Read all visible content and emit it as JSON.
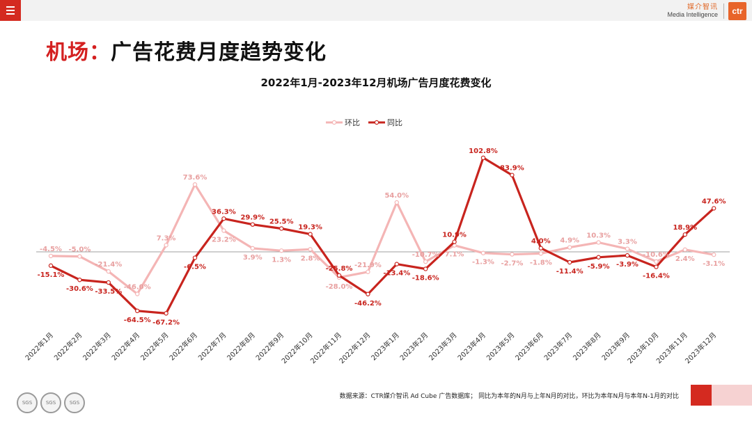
{
  "header": {
    "menu_icon": "hamburger-menu-icon",
    "brand_cn": "媒介智讯",
    "brand_en": "Media Intelligence",
    "brand_logo": "ctr"
  },
  "page": {
    "title_prefix": "机场：",
    "title_main": "广告花费月度趋势变化"
  },
  "chart_data": {
    "type": "line",
    "title": "2022年1月-2023年12月机场广告月度花费变化",
    "legend_position": "top",
    "categories": [
      "2022年1月",
      "2022年2月",
      "2022年3月",
      "2022年4月",
      "2022年5月",
      "2022年6月",
      "2022年7月",
      "2022年8月",
      "2022年9月",
      "2022年10月",
      "2022年11月",
      "2022年12月",
      "2023年1月",
      "2023年2月",
      "2023年3月",
      "2023年4月",
      "2023年5月",
      "2023年6月",
      "2023年7月",
      "2023年8月",
      "2023年9月",
      "2023年10月",
      "2023年11月",
      "2023年12月"
    ],
    "series": [
      {
        "name": "环比",
        "color": "#f4b5b5",
        "values": [
          -4.5,
          -5.0,
          -21.4,
          -46.0,
          7.3,
          73.6,
          23.2,
          3.9,
          1.3,
          2.8,
          -28.0,
          -21.9,
          54.0,
          -10.7,
          7.1,
          -1.3,
          -2.7,
          -1.8,
          4.9,
          10.3,
          3.3,
          -10.6,
          2.4,
          -3.1
        ],
        "labels": [
          "-4.5%",
          "-5.0%",
          "-21.4%",
          "-46.0%",
          "7.3%",
          "73.6%",
          "23.2%",
          "3.9%",
          "1.3%",
          "2.8%",
          "-28.0%",
          "-21.9%",
          "54.0%",
          "-10.7%",
          "7.1%",
          "-1.3%",
          "-2.7%",
          "-1.8%",
          "4.9%",
          "10.3%",
          "3.3%",
          "-10.6%",
          "2.4%",
          "-3.1%"
        ]
      },
      {
        "name": "同比",
        "color": "#c8241e",
        "values": [
          -15.1,
          -30.6,
          -33.5,
          -64.5,
          -67.2,
          -6.5,
          36.3,
          29.9,
          25.5,
          19.3,
          -25.8,
          -46.2,
          -13.4,
          -18.6,
          10.9,
          102.8,
          83.9,
          4.0,
          -11.4,
          -5.9,
          -3.9,
          -16.4,
          18.9,
          47.6
        ],
        "labels": [
          "-15.1%",
          "-30.6%",
          "-33.5%",
          "-64.5%",
          "-67.2%",
          "-6.5%",
          "36.3%",
          "29.9%",
          "25.5%",
          "19.3%",
          "-25.8%",
          "-46.2%",
          "-13.4%",
          "-18.6%",
          "10.9%",
          "102.8%",
          "83.9%",
          "4.0%",
          "-11.4%",
          "-5.9%",
          "-3.9%",
          "-16.4%",
          "18.9%",
          "47.6%"
        ]
      }
    ]
  },
  "footer": {
    "source_note": "数据来源：CTR媒介智讯 Ad Cube 广告数据库； 同比为本年的N月与上年N月的对比，环比为本年N月与本年N-1月的对比",
    "cert_label": "SGS",
    "cert_icons": [
      "sgs-certification-icon",
      "sgs-certification-icon",
      "sgs-certification-icon"
    ]
  }
}
